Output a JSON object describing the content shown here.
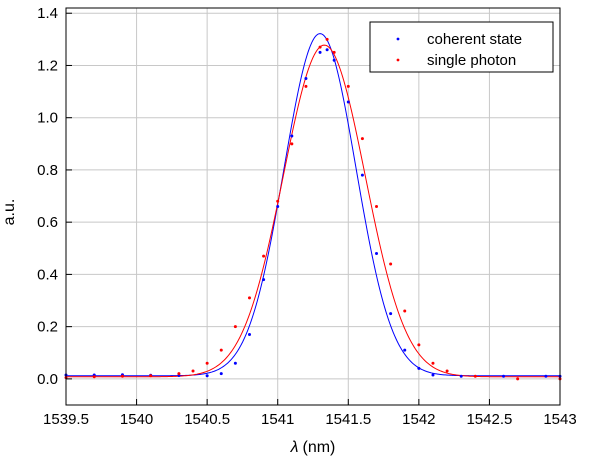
{
  "chart_data": {
    "type": "scatter",
    "title": "",
    "xlabel_symbol": "λ",
    "xlabel_unit": "(nm)",
    "ylabel": "a.u.",
    "xlim": [
      1539.5,
      1543
    ],
    "ylim": [
      -0.1,
      1.42
    ],
    "x_ticks": [
      1539.5,
      1540,
      1540.5,
      1541,
      1541.5,
      1542,
      1542.5,
      1543
    ],
    "y_ticks": [
      0.0,
      0.2,
      0.4,
      0.6,
      0.8,
      1.0,
      1.2,
      1.4
    ],
    "x_tick_labels": [
      "1539.5",
      "1540",
      "1540.5",
      "1541",
      "1541.5",
      "1542",
      "1542.5",
      "1543"
    ],
    "y_tick_labels": [
      "0.0",
      "0.2",
      "0.4",
      "0.6",
      "0.8",
      "1.0",
      "1.2",
      "1.4"
    ],
    "grid": true,
    "legend_position": "top-right",
    "series": [
      {
        "name": "coherent state",
        "color": "#0000ff",
        "marker": "dot",
        "points": [
          [
            1539.5,
            0.015
          ],
          [
            1539.7,
            0.015
          ],
          [
            1539.9,
            0.016
          ],
          [
            1540.1,
            0.014
          ],
          [
            1540.3,
            0.013
          ],
          [
            1540.5,
            0.012
          ],
          [
            1540.6,
            0.02
          ],
          [
            1540.7,
            0.06
          ],
          [
            1540.8,
            0.17
          ],
          [
            1540.9,
            0.38
          ],
          [
            1541.0,
            0.66
          ],
          [
            1541.1,
            0.93
          ],
          [
            1541.2,
            1.15
          ],
          [
            1541.3,
            1.25
          ],
          [
            1541.35,
            1.26
          ],
          [
            1541.4,
            1.22
          ],
          [
            1541.5,
            1.06
          ],
          [
            1541.6,
            0.78
          ],
          [
            1541.7,
            0.48
          ],
          [
            1541.8,
            0.25
          ],
          [
            1541.9,
            0.11
          ],
          [
            1542.0,
            0.04
          ],
          [
            1542.1,
            0.015
          ],
          [
            1542.3,
            0.01
          ],
          [
            1542.6,
            0.01
          ],
          [
            1542.9,
            0.01
          ],
          [
            1543.0,
            0.01
          ]
        ]
      },
      {
        "name": "single photon",
        "color": "#ff0000",
        "marker": "dot",
        "points": [
          [
            1539.5,
            0.005
          ],
          [
            1539.7,
            0.008
          ],
          [
            1539.9,
            0.01
          ],
          [
            1540.1,
            0.012
          ],
          [
            1540.3,
            0.02
          ],
          [
            1540.4,
            0.03
          ],
          [
            1540.5,
            0.06
          ],
          [
            1540.6,
            0.11
          ],
          [
            1540.7,
            0.2
          ],
          [
            1540.8,
            0.31
          ],
          [
            1540.9,
            0.47
          ],
          [
            1541.0,
            0.68
          ],
          [
            1541.1,
            0.9
          ],
          [
            1541.2,
            1.12
          ],
          [
            1541.3,
            1.27
          ],
          [
            1541.35,
            1.3
          ],
          [
            1541.4,
            1.25
          ],
          [
            1541.5,
            1.12
          ],
          [
            1541.6,
            0.92
          ],
          [
            1541.7,
            0.66
          ],
          [
            1541.8,
            0.44
          ],
          [
            1541.9,
            0.26
          ],
          [
            1542.0,
            0.13
          ],
          [
            1542.1,
            0.06
          ],
          [
            1542.2,
            0.03
          ],
          [
            1542.4,
            0.01
          ],
          [
            1542.7,
            0.0
          ],
          [
            1543.0,
            0.0
          ]
        ]
      }
    ],
    "fits": [
      {
        "series": "coherent state",
        "color": "#0000ff",
        "amplitude": 1.31,
        "center": 1541.3,
        "sigma": 0.255,
        "offset": 0.012
      },
      {
        "series": "single photon",
        "color": "#ff0000",
        "amplitude": 1.27,
        "center": 1541.33,
        "sigma": 0.29,
        "offset": 0.008
      }
    ]
  }
}
